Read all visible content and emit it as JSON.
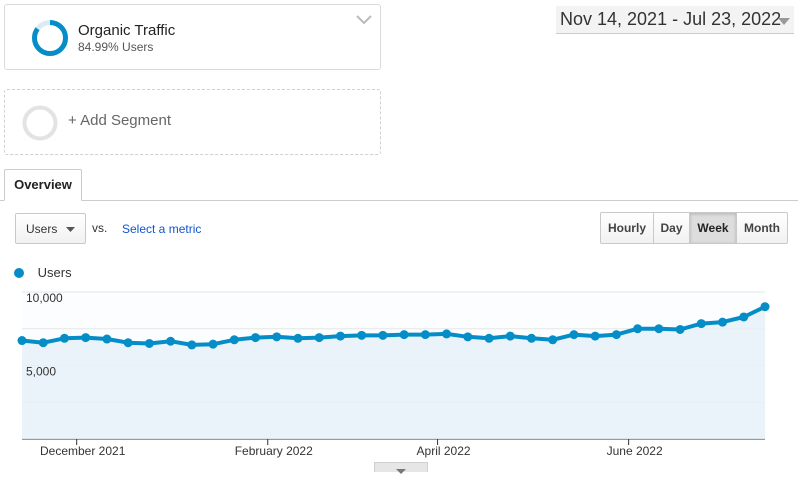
{
  "segment": {
    "title": "Organic Traffic",
    "subtitle": "84.99% Users",
    "percent": 84.99
  },
  "add_segment": {
    "label": "+ Add Segment"
  },
  "date_range": {
    "label": "Nov 14, 2021 - Jul 23, 2022"
  },
  "tabs": [
    {
      "label": "Overview"
    }
  ],
  "metric": {
    "selected": "Users",
    "vs_label": "vs.",
    "select_metric_label": "Select a metric"
  },
  "granularity": [
    {
      "label": "Hourly",
      "active": false
    },
    {
      "label": "Day",
      "active": false
    },
    {
      "label": "Week",
      "active": true
    },
    {
      "label": "Month",
      "active": false
    }
  ],
  "legend": {
    "label": "Users"
  },
  "colors": {
    "accent": "#058dc7",
    "fill": "#e6f1f8"
  },
  "chart_data": {
    "type": "area",
    "series": [
      {
        "name": "Users",
        "values": [
          6700,
          6550,
          6850,
          6900,
          6800,
          6550,
          6500,
          6650,
          6400,
          6450,
          6750,
          6900,
          6950,
          6850,
          6900,
          7000,
          7050,
          7050,
          7100,
          7100,
          7150,
          6950,
          6850,
          7000,
          6850,
          6750,
          7100,
          7000,
          7100,
          7500,
          7500,
          7450,
          7850,
          7950,
          8300,
          9000
        ]
      }
    ],
    "yticks": [
      {
        "value": 10000,
        "label": "10,000"
      },
      {
        "value": 5000,
        "label": "5,000"
      }
    ],
    "xticks": [
      {
        "index": 3,
        "label": "December 2021"
      },
      {
        "index": 12,
        "label": "February 2022"
      },
      {
        "index": 20,
        "label": "April 2022"
      },
      {
        "index": 29,
        "label": "June 2022"
      }
    ],
    "ylim": [
      0,
      10000
    ],
    "grid": true
  }
}
